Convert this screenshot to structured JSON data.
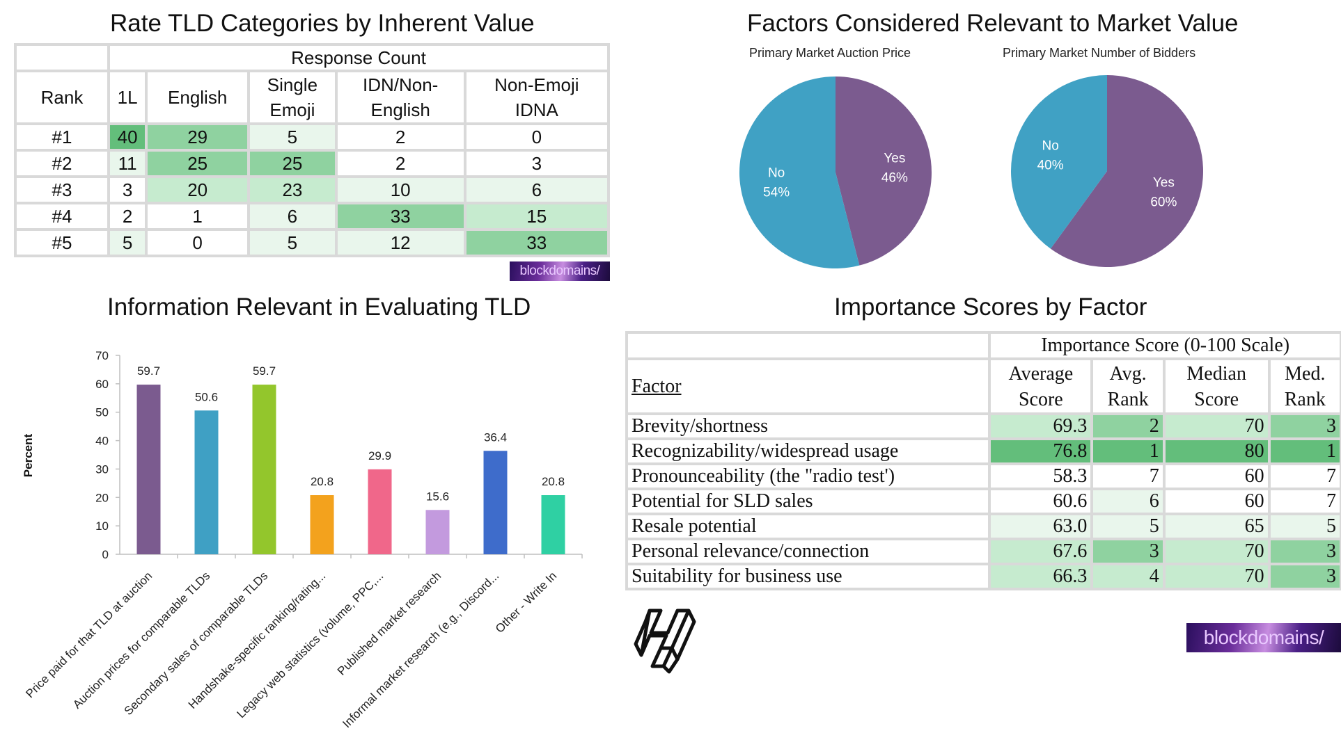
{
  "rank_table": {
    "title": "Rate TLD Categories by Inherent Value",
    "group_header": "Response Count",
    "rank_header": "Rank",
    "columns": [
      [
        "1L"
      ],
      [
        "English"
      ],
      [
        "Single",
        "Emoji"
      ],
      [
        "IDN/Non-",
        "English"
      ],
      [
        "Non-Emoji",
        "IDNA"
      ]
    ],
    "rows": [
      {
        "rank": "#1",
        "values": [
          "40",
          "29",
          "5",
          "2",
          "0"
        ]
      },
      {
        "rank": "#2",
        "values": [
          "11",
          "25",
          "25",
          "2",
          "3"
        ]
      },
      {
        "rank": "#3",
        "values": [
          "3",
          "20",
          "23",
          "10",
          "6"
        ]
      },
      {
        "rank": "#4",
        "values": [
          "2",
          "1",
          "6",
          "33",
          "15"
        ]
      },
      {
        "rank": "#5",
        "values": [
          "5",
          "0",
          "5",
          "12",
          "33"
        ]
      }
    ],
    "heat_colors": [
      "#ffffff",
      "#e9f6ec",
      "#c6ebcf",
      "#8fd2a0",
      "#63be7b"
    ]
  },
  "market_value": {
    "title": "Factors Considered Relevant to Market Value"
  },
  "bars_section": {
    "title": "Information Relevant in Evaluating TLD"
  },
  "importance_table": {
    "title": "Importance Scores by Factor",
    "group_header": "Importance Score (0-100 Scale)",
    "factor_header": "Factor",
    "columns": [
      [
        "Average",
        "Score"
      ],
      [
        "Avg.",
        "Rank"
      ],
      [
        "Median",
        "Score"
      ],
      [
        "Med.",
        "Rank"
      ]
    ],
    "rows": [
      {
        "factor": "Brevity/shortness",
        "values": [
          "69.3",
          "2",
          "70",
          "3"
        ]
      },
      {
        "factor": "Recognizability/widespread usage",
        "values": [
          "76.8",
          "1",
          "80",
          "1"
        ]
      },
      {
        "factor": "Pronounceability (the \"radio test')",
        "values": [
          "58.3",
          "7",
          "60",
          "7"
        ]
      },
      {
        "factor": "Potential for SLD sales",
        "values": [
          "60.6",
          "6",
          "60",
          "7"
        ]
      },
      {
        "factor": "Resale potential",
        "values": [
          "63.0",
          "5",
          "65",
          "5"
        ]
      },
      {
        "factor": "Personal relevance/connection",
        "values": [
          "67.6",
          "3",
          "70",
          "3"
        ]
      },
      {
        "factor": "Suitability for business use",
        "values": [
          "66.3",
          "4",
          "70",
          "3"
        ]
      }
    ],
    "heat_colors": [
      "#ffffff",
      "#e9f6ec",
      "#c6ebcf",
      "#8fd2a0",
      "#63be7b"
    ]
  },
  "logos": {
    "blockdomains": "blockdomains/"
  },
  "chart_data": [
    {
      "type": "pie",
      "title": "Primary Market Auction Price",
      "slices": [
        {
          "label": "Yes",
          "value": 46,
          "pct_label": "46%",
          "color": "#7b5b8f"
        },
        {
          "label": "No",
          "value": 54,
          "pct_label": "54%",
          "color": "#40a1c4"
        }
      ]
    },
    {
      "type": "pie",
      "title": "Primary Market Number of Bidders",
      "slices": [
        {
          "label": "Yes",
          "value": 60,
          "pct_label": "60%",
          "color": "#7b5b8f"
        },
        {
          "label": "No",
          "value": 40,
          "pct_label": "40%",
          "color": "#40a1c4"
        }
      ]
    },
    {
      "type": "bar",
      "title": "Information Relevant in Evaluating TLD",
      "ylabel": "Percent",
      "ylim": [
        0,
        70
      ],
      "yticks": [
        0,
        10,
        20,
        30,
        40,
        50,
        60,
        70
      ],
      "grid": false,
      "categories": [
        "Price paid for that TLD at auction",
        "Auction prices for comparable TLDs",
        "Secondary sales of comparable TLDs",
        "Handshake-specific ranking/rating...",
        "Legacy web statistics (volume, PPC,...",
        "Published market research",
        "Informal market research (e.g., Discord...",
        "Other - Write In"
      ],
      "values": [
        59.7,
        50.6,
        59.7,
        20.8,
        29.9,
        15.6,
        36.4,
        20.8
      ],
      "value_labels": [
        "59.7",
        "50.6",
        "59.7",
        "20.8",
        "29.9",
        "15.6",
        "36.4",
        "20.8"
      ],
      "colors": [
        "#7b5b8f",
        "#3fa0c4",
        "#93c62c",
        "#f3a21d",
        "#f0678a",
        "#c39ade",
        "#3e6ccb",
        "#2fd0a3"
      ]
    }
  ]
}
